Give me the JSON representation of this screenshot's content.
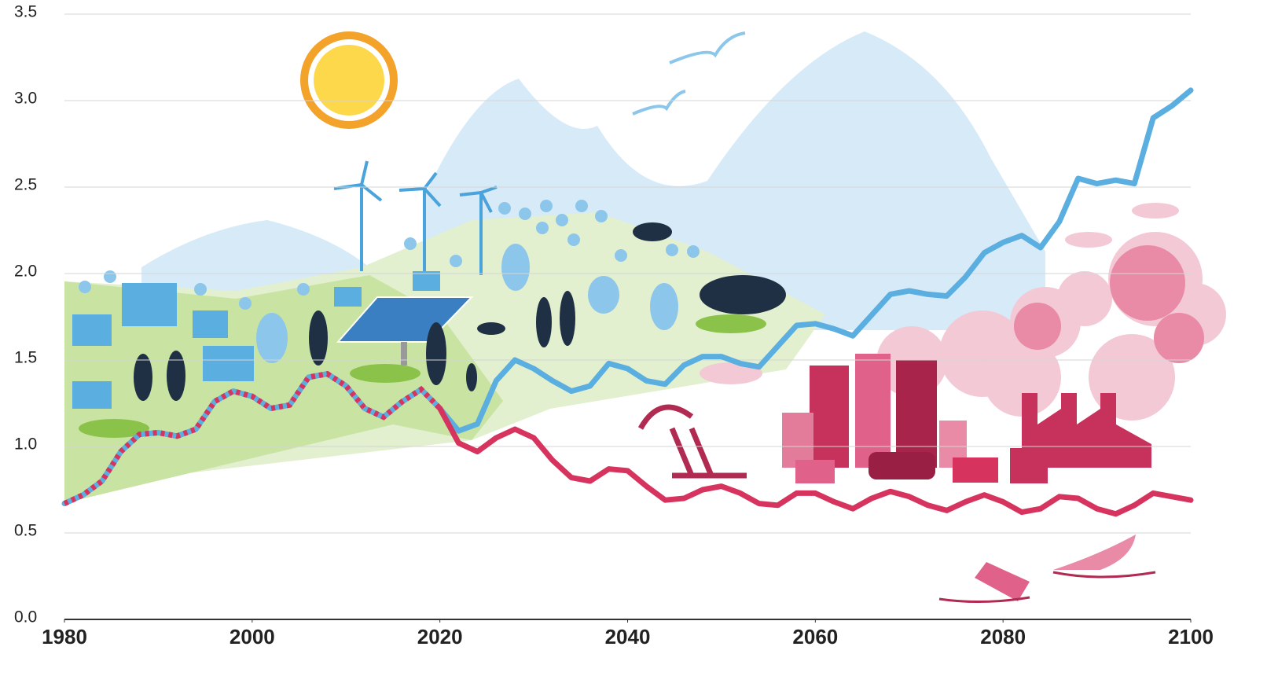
{
  "chart_data": {
    "type": "line",
    "x": [
      1980,
      1982,
      1984,
      1986,
      1988,
      1990,
      1992,
      1994,
      1996,
      1998,
      2000,
      2002,
      2004,
      2006,
      2008,
      2010,
      2012,
      2014,
      2016,
      2018,
      2020,
      2022,
      2024,
      2026,
      2028,
      2030,
      2032,
      2034,
      2036,
      2038,
      2040,
      2042,
      2044,
      2046,
      2048,
      2050,
      2052,
      2054,
      2056,
      2058,
      2060,
      2062,
      2064,
      2066,
      2068,
      2070,
      2072,
      2074,
      2076,
      2078,
      2080,
      2082,
      2084,
      2086,
      2088,
      2090,
      2092,
      2094,
      2096,
      2098,
      2100
    ],
    "series": [
      {
        "color": "#5aaee0",
        "dash_color": "#d6345e",
        "values": [
          0.67,
          0.72,
          0.8,
          0.97,
          1.07,
          1.08,
          1.06,
          1.1,
          1.26,
          1.32,
          1.29,
          1.22,
          1.24,
          1.4,
          1.42,
          1.35,
          1.22,
          1.17,
          1.26,
          1.33,
          1.22,
          null,
          null,
          null,
          null,
          null,
          null,
          null,
          null,
          null,
          null,
          null,
          null,
          null,
          null,
          null,
          null,
          null,
          null,
          null,
          null,
          null,
          null,
          null,
          null,
          null,
          null,
          null,
          null,
          null,
          null,
          null,
          null,
          null,
          null,
          null,
          null,
          null,
          null,
          null,
          null
        ]
      },
      {
        "color": "#5aaee0",
        "values": [
          null,
          null,
          null,
          null,
          null,
          null,
          null,
          null,
          null,
          null,
          null,
          null,
          null,
          null,
          null,
          null,
          null,
          null,
          null,
          null,
          1.22,
          1.09,
          1.13,
          1.38,
          1.5,
          1.45,
          1.38,
          1.32,
          1.35,
          1.48,
          1.45,
          1.38,
          1.36,
          1.47,
          1.52,
          1.52,
          1.48,
          1.46,
          1.58,
          1.7,
          1.71,
          1.68,
          1.64,
          1.76,
          1.88,
          1.9,
          1.88,
          1.87,
          1.98,
          2.12,
          2.18,
          2.22,
          2.15,
          2.3,
          2.55,
          2.52,
          2.54,
          2.52,
          2.9,
          2.97,
          3.06
        ]
      },
      {
        "color": "#d6345e",
        "values": [
          null,
          null,
          null,
          null,
          null,
          null,
          null,
          null,
          null,
          null,
          null,
          null,
          null,
          null,
          null,
          null,
          null,
          null,
          null,
          null,
          1.22,
          1.02,
          0.97,
          1.05,
          1.1,
          1.05,
          0.92,
          0.82,
          0.8,
          0.87,
          0.86,
          0.77,
          0.69,
          0.7,
          0.75,
          0.77,
          0.73,
          0.67,
          0.66,
          0.73,
          0.73,
          0.68,
          0.64,
          0.7,
          0.74,
          0.71,
          0.66,
          0.63,
          0.68,
          0.72,
          0.68,
          0.62,
          0.64,
          0.71,
          0.7,
          0.64,
          0.61,
          0.66,
          0.73,
          0.71,
          0.69
        ]
      }
    ],
    "xlim": [
      1980,
      2100
    ],
    "xticks": [
      1980,
      2000,
      2020,
      2040,
      2060,
      2080,
      2100
    ],
    "ylim": [
      0,
      3.5
    ],
    "yticks": [
      {
        "value": 0,
        "label": "0.0"
      },
      {
        "value": 0.5,
        "label": "0.5"
      },
      {
        "value": 1,
        "label": "1.0"
      },
      {
        "value": 1.5,
        "label": "1.5"
      },
      {
        "value": 2,
        "label": "2.0"
      },
      {
        "value": 2.5,
        "label": "2.5"
      },
      {
        "value": 3,
        "label": "3.0"
      },
      {
        "value": 3.5,
        "label": "3.5"
      }
    ],
    "grid": true
  }
}
